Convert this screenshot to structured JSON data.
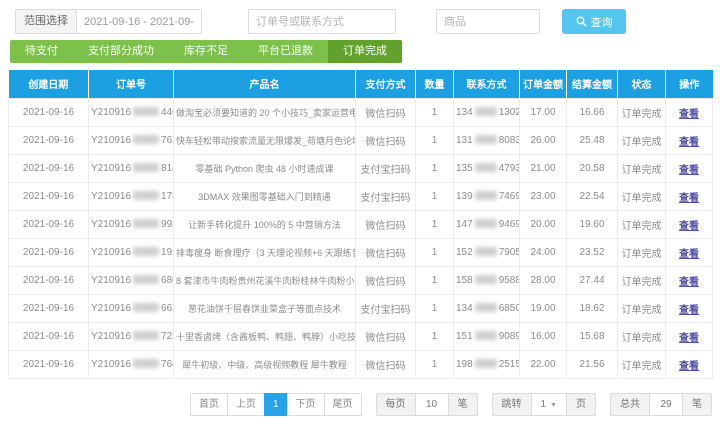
{
  "filters": {
    "range_label": "范围选择",
    "date_value": "2021-09-16 - 2021-09-16",
    "order_placeholder": "订单号或联系方式",
    "product_placeholder": "商品",
    "search_label": "查询"
  },
  "tabs": [
    {
      "label": "待支付",
      "active": false
    },
    {
      "label": "支付部分成功",
      "active": false
    },
    {
      "label": "库存不足",
      "active": false
    },
    {
      "label": "平台已退款",
      "active": false
    },
    {
      "label": "订单完成",
      "active": true
    }
  ],
  "table": {
    "headers": [
      "创建日期",
      "订单号",
      "产品名",
      "支付方式",
      "数量",
      "联系方式",
      "订单金额",
      "结算金额",
      "状态",
      "操作"
    ],
    "rows": [
      {
        "date": "2021-09-16",
        "order_prefix": "Y210916",
        "order_suffix": "4408",
        "product": "做淘宝必须要知道的 20 个小技巧_卖家运营电商论坛",
        "payment": "微信扫码",
        "qty": "1",
        "contact_prefix": "134",
        "contact_suffix": "1302",
        "amount": "17.00",
        "settle": "16.66",
        "status": "订单完成",
        "action": "查看"
      },
      {
        "date": "2021-09-16",
        "order_prefix": "Y210916",
        "order_suffix": "7677",
        "product": "快车轻松带动搜索流量无限爆发_荷塘月色论坛",
        "payment": "微信扫码",
        "qty": "1",
        "contact_prefix": "131",
        "contact_suffix": "8083",
        "amount": "26.00",
        "settle": "25.48",
        "status": "订单完成",
        "action": "查看"
      },
      {
        "date": "2021-09-16",
        "order_prefix": "Y210916",
        "order_suffix": "8141",
        "product": "零基础 Python 爬虫 48 小时速成课",
        "payment": "支付宝扫码",
        "qty": "1",
        "contact_prefix": "135",
        "contact_suffix": "4793",
        "amount": "21.00",
        "settle": "20.58",
        "status": "订单完成",
        "action": "查看"
      },
      {
        "date": "2021-09-16",
        "order_prefix": "Y210916",
        "order_suffix": "1786",
        "product": "3DMAX 效果图零基础入门到精通",
        "payment": "支付宝扫码",
        "qty": "1",
        "contact_prefix": "139",
        "contact_suffix": "7469",
        "amount": "23.00",
        "settle": "22.54",
        "status": "订单完成",
        "action": "查看"
      },
      {
        "date": "2021-09-16",
        "order_prefix": "Y210916",
        "order_suffix": "9929",
        "product": "让新手转化提升 100%的 5 中营销方法",
        "payment": "微信扫码",
        "qty": "1",
        "contact_prefix": "147",
        "contact_suffix": "9469",
        "amount": "20.00",
        "settle": "19.60",
        "status": "订单完成",
        "action": "查看"
      },
      {
        "date": "2021-09-16",
        "order_prefix": "Y210916",
        "order_suffix": "1921",
        "product": "排毒瘦身 断食理疗（3 天理论视频+6 天跟练音频）",
        "payment": "微信扫码",
        "qty": "1",
        "contact_prefix": "152",
        "contact_suffix": "7905",
        "amount": "24.00",
        "settle": "23.52",
        "status": "订单完成",
        "action": "查看"
      },
      {
        "date": "2021-09-16",
        "order_prefix": "Y210916",
        "order_suffix": "6805",
        "product": "8 套津市牛肉粉贵州花溪牛肉粉桂林牛肉粉小吃配方",
        "payment": "微信扫码",
        "qty": "1",
        "contact_prefix": "158",
        "contact_suffix": "9588",
        "amount": "28.00",
        "settle": "27.44",
        "status": "订单完成",
        "action": "查看"
      },
      {
        "date": "2021-09-16",
        "order_prefix": "Y210916",
        "order_suffix": "6677",
        "product": "葱花油饼千层春饼韭菜盒子等面点技术",
        "payment": "支付宝扫码",
        "qty": "1",
        "contact_prefix": "134",
        "contact_suffix": "6850",
        "amount": "19.00",
        "settle": "18.62",
        "status": "订单完成",
        "action": "查看"
      },
      {
        "date": "2021-09-16",
        "order_prefix": "Y210916",
        "order_suffix": "7258",
        "product": "十里香卤烤（含酱板鸭、鸭翅、鸭脖）小吃技术配方",
        "payment": "微信扫码",
        "qty": "1",
        "contact_prefix": "151",
        "contact_suffix": "9089",
        "amount": "16.00",
        "settle": "15.68",
        "status": "订单完成",
        "action": "查看"
      },
      {
        "date": "2021-09-16",
        "order_prefix": "Y210916",
        "order_suffix": "7681",
        "product": "犀牛初级、中级、高级视频教程 犀牛教程",
        "payment": "微信扫码",
        "qty": "1",
        "contact_prefix": "198",
        "contact_suffix": "2515",
        "amount": "22.00",
        "settle": "21.56",
        "status": "订单完成",
        "action": "查看"
      }
    ]
  },
  "pagination": {
    "first": "首页",
    "prev": "上页",
    "current": "1",
    "next": "下页",
    "last": "尾页",
    "per_page_label": "每页",
    "per_page_value": "10",
    "per_page_unit": "笔",
    "jump_label": "跳转",
    "jump_value": "1",
    "jump_unit": "页",
    "total_label": "总共",
    "total_value": "29",
    "total_unit": "笔"
  },
  "colors": {
    "table_header_blue": "#1ca0e1",
    "search_button_blue": "#55c5ef",
    "tab_green": "#7cc24a",
    "tab_active_green": "#60a22c",
    "page_active_blue": "#2aa2e8",
    "view_link_purple": "#4f4fa6"
  }
}
